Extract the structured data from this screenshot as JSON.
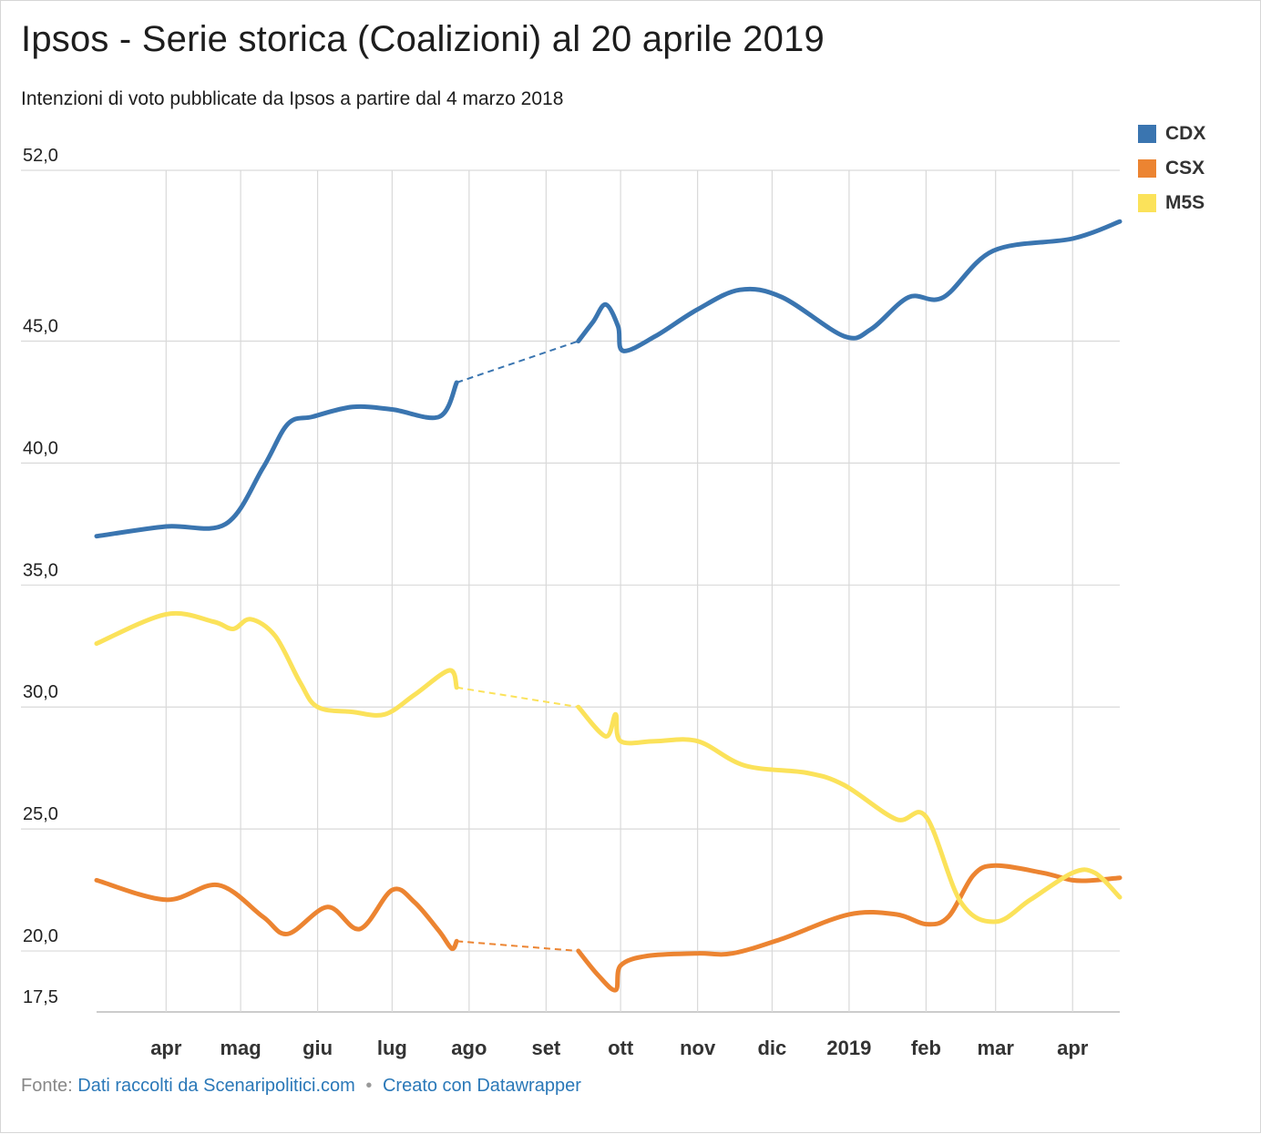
{
  "header": {
    "title": "Ipsos - Serie storica (Coalizioni) al 20 aprile 2019",
    "subtitle": "Intenzioni di voto pubblicate da Ipsos a partire dal 4 marzo 2018"
  },
  "footer": {
    "prefix": "Fonte:",
    "source_link": "Dati raccolti da Scenaripolitici.com",
    "separator": "•",
    "credit_link": "Creato con Datawrapper"
  },
  "chart_data": {
    "type": "line",
    "title": "Ipsos - Serie storica (Coalizioni) al 20 aprile 2019",
    "subtitle": "Intenzioni di voto pubblicate da Ipsos a partire dal 4 marzo 2018",
    "xlabel": "",
    "ylabel": "",
    "ylim": [
      17.5,
      52.0
    ],
    "yticks": [
      {
        "value": 17.5,
        "label": "17,5"
      },
      {
        "value": 20.0,
        "label": "20,0"
      },
      {
        "value": 25.0,
        "label": "25,0"
      },
      {
        "value": 30.0,
        "label": "30,0"
      },
      {
        "value": 35.0,
        "label": "35,0"
      },
      {
        "value": 40.0,
        "label": "40,0"
      },
      {
        "value": 45.0,
        "label": "45,0"
      },
      {
        "value": 52.0,
        "label": "52,0"
      }
    ],
    "xlim": [
      "2018-03-04",
      "2019-04-20"
    ],
    "xticks": [
      {
        "date": "2018-04-01",
        "label": "apr"
      },
      {
        "date": "2018-05-01",
        "label": "mag"
      },
      {
        "date": "2018-06-01",
        "label": "giu"
      },
      {
        "date": "2018-07-01",
        "label": "lug"
      },
      {
        "date": "2018-08-01",
        "label": "ago"
      },
      {
        "date": "2018-09-01",
        "label": "set"
      },
      {
        "date": "2018-10-01",
        "label": "ott"
      },
      {
        "date": "2018-11-01",
        "label": "nov"
      },
      {
        "date": "2018-12-01",
        "label": "dic"
      },
      {
        "date": "2019-01-01",
        "label": "2019"
      },
      {
        "date": "2019-02-01",
        "label": "feb"
      },
      {
        "date": "2019-03-01",
        "label": "mar"
      },
      {
        "date": "2019-04-01",
        "label": "apr"
      }
    ],
    "grid": true,
    "legend_position": "top-right",
    "gaps": [
      {
        "from": "2018-07-27",
        "to": "2018-09-14",
        "style": "dashed"
      }
    ],
    "series": [
      {
        "name": "CDX",
        "color": "#3a75b0",
        "points": [
          [
            "2018-03-04",
            37.0
          ],
          [
            "2018-04-01",
            37.4
          ],
          [
            "2018-04-25",
            37.5
          ],
          [
            "2018-05-10",
            39.8
          ],
          [
            "2018-05-20",
            41.6
          ],
          [
            "2018-05-30",
            41.9
          ],
          [
            "2018-06-15",
            42.3
          ],
          [
            "2018-07-01",
            42.2
          ],
          [
            "2018-07-20",
            41.9
          ],
          [
            "2018-07-27",
            43.3
          ],
          [
            "2018-09-14",
            45.0
          ],
          [
            "2018-09-20",
            45.8
          ],
          [
            "2018-09-25",
            46.5
          ],
          [
            "2018-09-30",
            45.6
          ],
          [
            "2018-10-02",
            44.6
          ],
          [
            "2018-10-15",
            45.2
          ],
          [
            "2018-11-01",
            46.3
          ],
          [
            "2018-11-18",
            47.1
          ],
          [
            "2018-12-05",
            46.8
          ],
          [
            "2018-12-30",
            45.2
          ],
          [
            "2019-01-10",
            45.5
          ],
          [
            "2019-01-25",
            46.8
          ],
          [
            "2019-02-08",
            46.8
          ],
          [
            "2019-02-28",
            48.7
          ],
          [
            "2019-04-01",
            49.2
          ],
          [
            "2019-04-20",
            49.9
          ]
        ]
      },
      {
        "name": "CSX",
        "color": "#ec8431",
        "points": [
          [
            "2018-03-04",
            22.9
          ],
          [
            "2018-04-01",
            22.1
          ],
          [
            "2018-04-22",
            22.7
          ],
          [
            "2018-05-10",
            21.4
          ],
          [
            "2018-05-20",
            20.7
          ],
          [
            "2018-06-05",
            21.8
          ],
          [
            "2018-06-18",
            20.9
          ],
          [
            "2018-07-01",
            22.5
          ],
          [
            "2018-07-10",
            22.0
          ],
          [
            "2018-07-20",
            20.8
          ],
          [
            "2018-07-25",
            20.1
          ],
          [
            "2018-07-27",
            20.4
          ],
          [
            "2018-09-14",
            20.0
          ],
          [
            "2018-09-22",
            19.0
          ],
          [
            "2018-09-29",
            18.4
          ],
          [
            "2018-10-01",
            19.4
          ],
          [
            "2018-10-12",
            19.8
          ],
          [
            "2018-11-01",
            19.9
          ],
          [
            "2018-11-15",
            19.9
          ],
          [
            "2018-12-05",
            20.5
          ],
          [
            "2019-01-01",
            21.5
          ],
          [
            "2019-01-20",
            21.5
          ],
          [
            "2019-02-01",
            21.1
          ],
          [
            "2019-02-10",
            21.4
          ],
          [
            "2019-02-20",
            23.1
          ],
          [
            "2019-03-01",
            23.5
          ],
          [
            "2019-03-20",
            23.2
          ],
          [
            "2019-04-01",
            22.9
          ],
          [
            "2019-04-10",
            22.9
          ],
          [
            "2019-04-20",
            23.0
          ]
        ]
      },
      {
        "name": "M5S",
        "color": "#fbe25a",
        "points": [
          [
            "2018-03-04",
            32.6
          ],
          [
            "2018-04-01",
            33.8
          ],
          [
            "2018-04-20",
            33.5
          ],
          [
            "2018-04-28",
            33.2
          ],
          [
            "2018-05-05",
            33.6
          ],
          [
            "2018-05-15",
            32.9
          ],
          [
            "2018-05-25",
            31.0
          ],
          [
            "2018-06-01",
            30.0
          ],
          [
            "2018-06-15",
            29.8
          ],
          [
            "2018-06-28",
            29.7
          ],
          [
            "2018-07-10",
            30.5
          ],
          [
            "2018-07-24",
            31.5
          ],
          [
            "2018-07-27",
            30.8
          ],
          [
            "2018-09-14",
            30.0
          ],
          [
            "2018-09-25",
            28.8
          ],
          [
            "2018-09-29",
            29.7
          ],
          [
            "2018-10-01",
            28.6
          ],
          [
            "2018-10-15",
            28.6
          ],
          [
            "2018-11-01",
            28.6
          ],
          [
            "2018-11-20",
            27.6
          ],
          [
            "2018-12-15",
            27.3
          ],
          [
            "2018-12-30",
            26.8
          ],
          [
            "2019-01-20",
            25.4
          ],
          [
            "2019-02-01",
            25.5
          ],
          [
            "2019-02-15",
            22.0
          ],
          [
            "2019-03-01",
            21.2
          ],
          [
            "2019-03-15",
            22.1
          ],
          [
            "2019-04-01",
            23.2
          ],
          [
            "2019-04-10",
            23.2
          ],
          [
            "2019-04-20",
            22.2
          ]
        ]
      }
    ]
  }
}
